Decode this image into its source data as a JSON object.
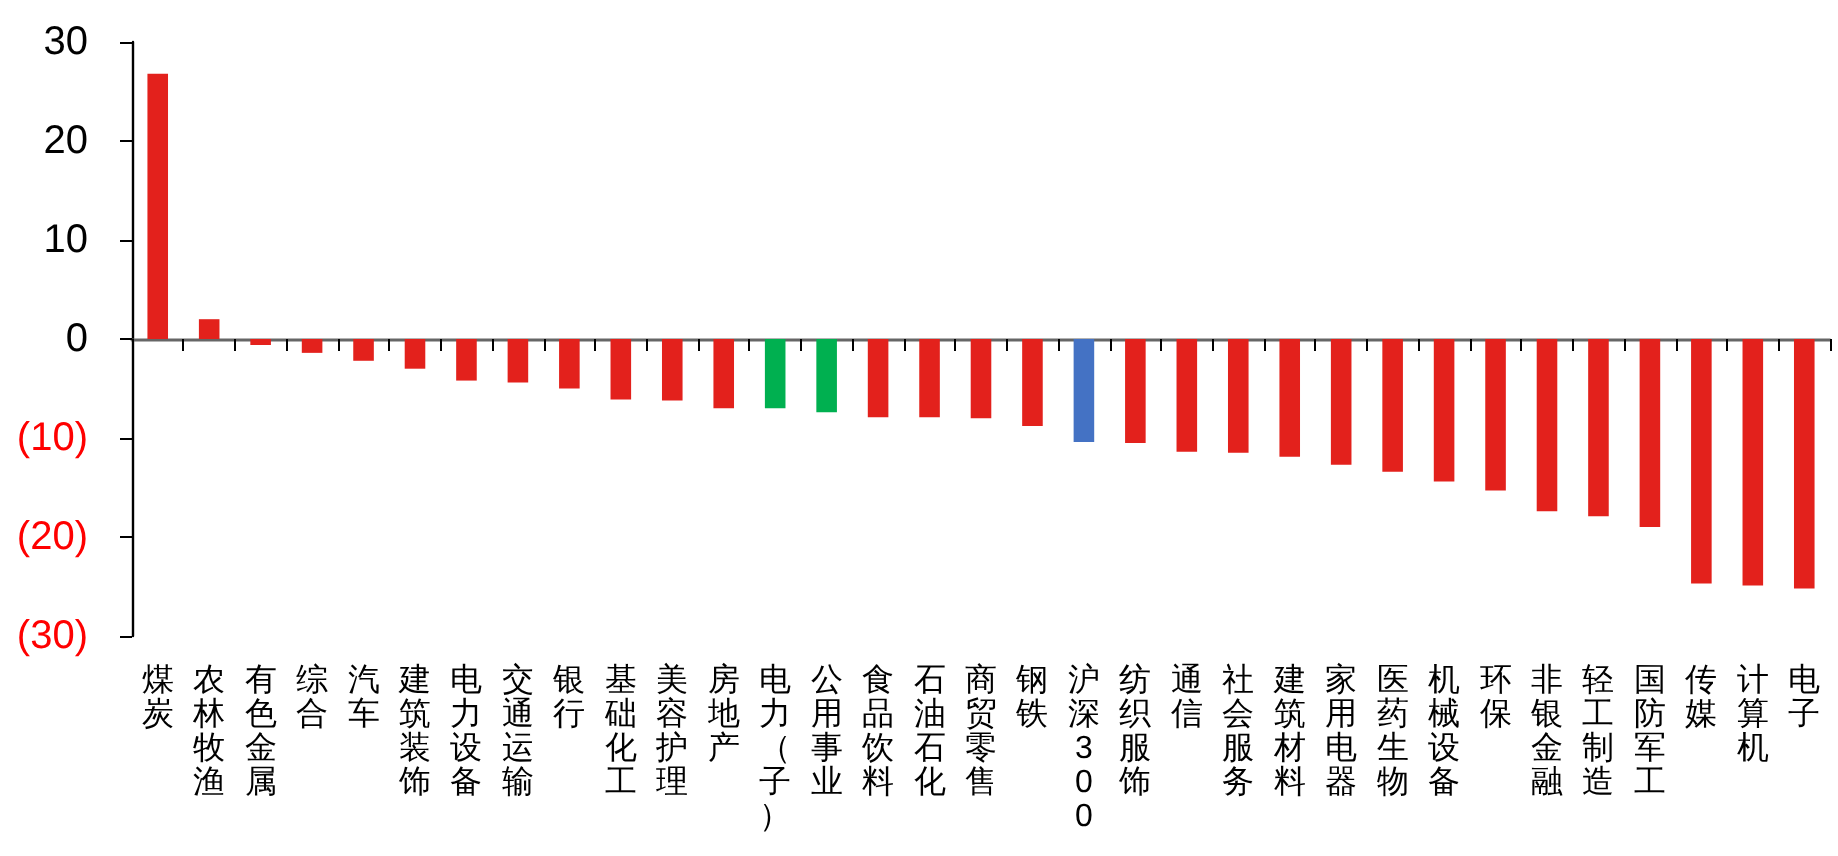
{
  "chart_data": {
    "type": "bar",
    "categories": [
      "煤炭",
      "农林牧渔",
      "有色金属",
      "综合",
      "汽车",
      "建筑装饰",
      "电力设备",
      "交通运输",
      "银行",
      "基础化工",
      "美容护理",
      "房地产",
      "电力（子）",
      "公用事业",
      "食品饮料",
      "石油石化",
      "商贸零售",
      "钢铁",
      "沪深300",
      "纺织服饰",
      "通信",
      "社会服务",
      "建筑材料",
      "家用电器",
      "医药生物",
      "机械设备",
      "环保",
      "非银金融",
      "轻工制造",
      "国防军工",
      "传媒",
      "计算机",
      "电子"
    ],
    "values": [
      26.8,
      2.0,
      -0.6,
      -1.4,
      -2.2,
      -3.0,
      -4.2,
      -4.4,
      -5.0,
      -6.1,
      -6.2,
      -7.0,
      -7.0,
      -7.4,
      -7.9,
      -7.9,
      -8.0,
      -8.8,
      -10.4,
      -10.5,
      -11.4,
      -11.5,
      -11.9,
      -12.7,
      -13.4,
      -14.4,
      -15.3,
      -17.4,
      -17.9,
      -19.0,
      -24.7,
      -24.9,
      -25.2
    ],
    "colors": [
      "#e3211c",
      "#e3211c",
      "#e3211c",
      "#e3211c",
      "#e3211c",
      "#e3211c",
      "#e3211c",
      "#e3211c",
      "#e3211c",
      "#e3211c",
      "#e3211c",
      "#e3211c",
      "#00b050",
      "#00b050",
      "#e3211c",
      "#e3211c",
      "#e3211c",
      "#e3211c",
      "#4472c4",
      "#e3211c",
      "#e3211c",
      "#e3211c",
      "#e3211c",
      "#e3211c",
      "#e3211c",
      "#e3211c",
      "#e3211c",
      "#e3211c",
      "#e3211c",
      "#e3211c",
      "#e3211c",
      "#e3211c",
      "#e3211c"
    ],
    "ylim": [
      -30,
      30
    ],
    "yticks": [
      30,
      20,
      10,
      0,
      {
        "value": -10,
        "label": "(10)"
      },
      {
        "value": -20,
        "label": "(20)"
      },
      {
        "value": -30,
        "label": "(30)"
      }
    ]
  }
}
